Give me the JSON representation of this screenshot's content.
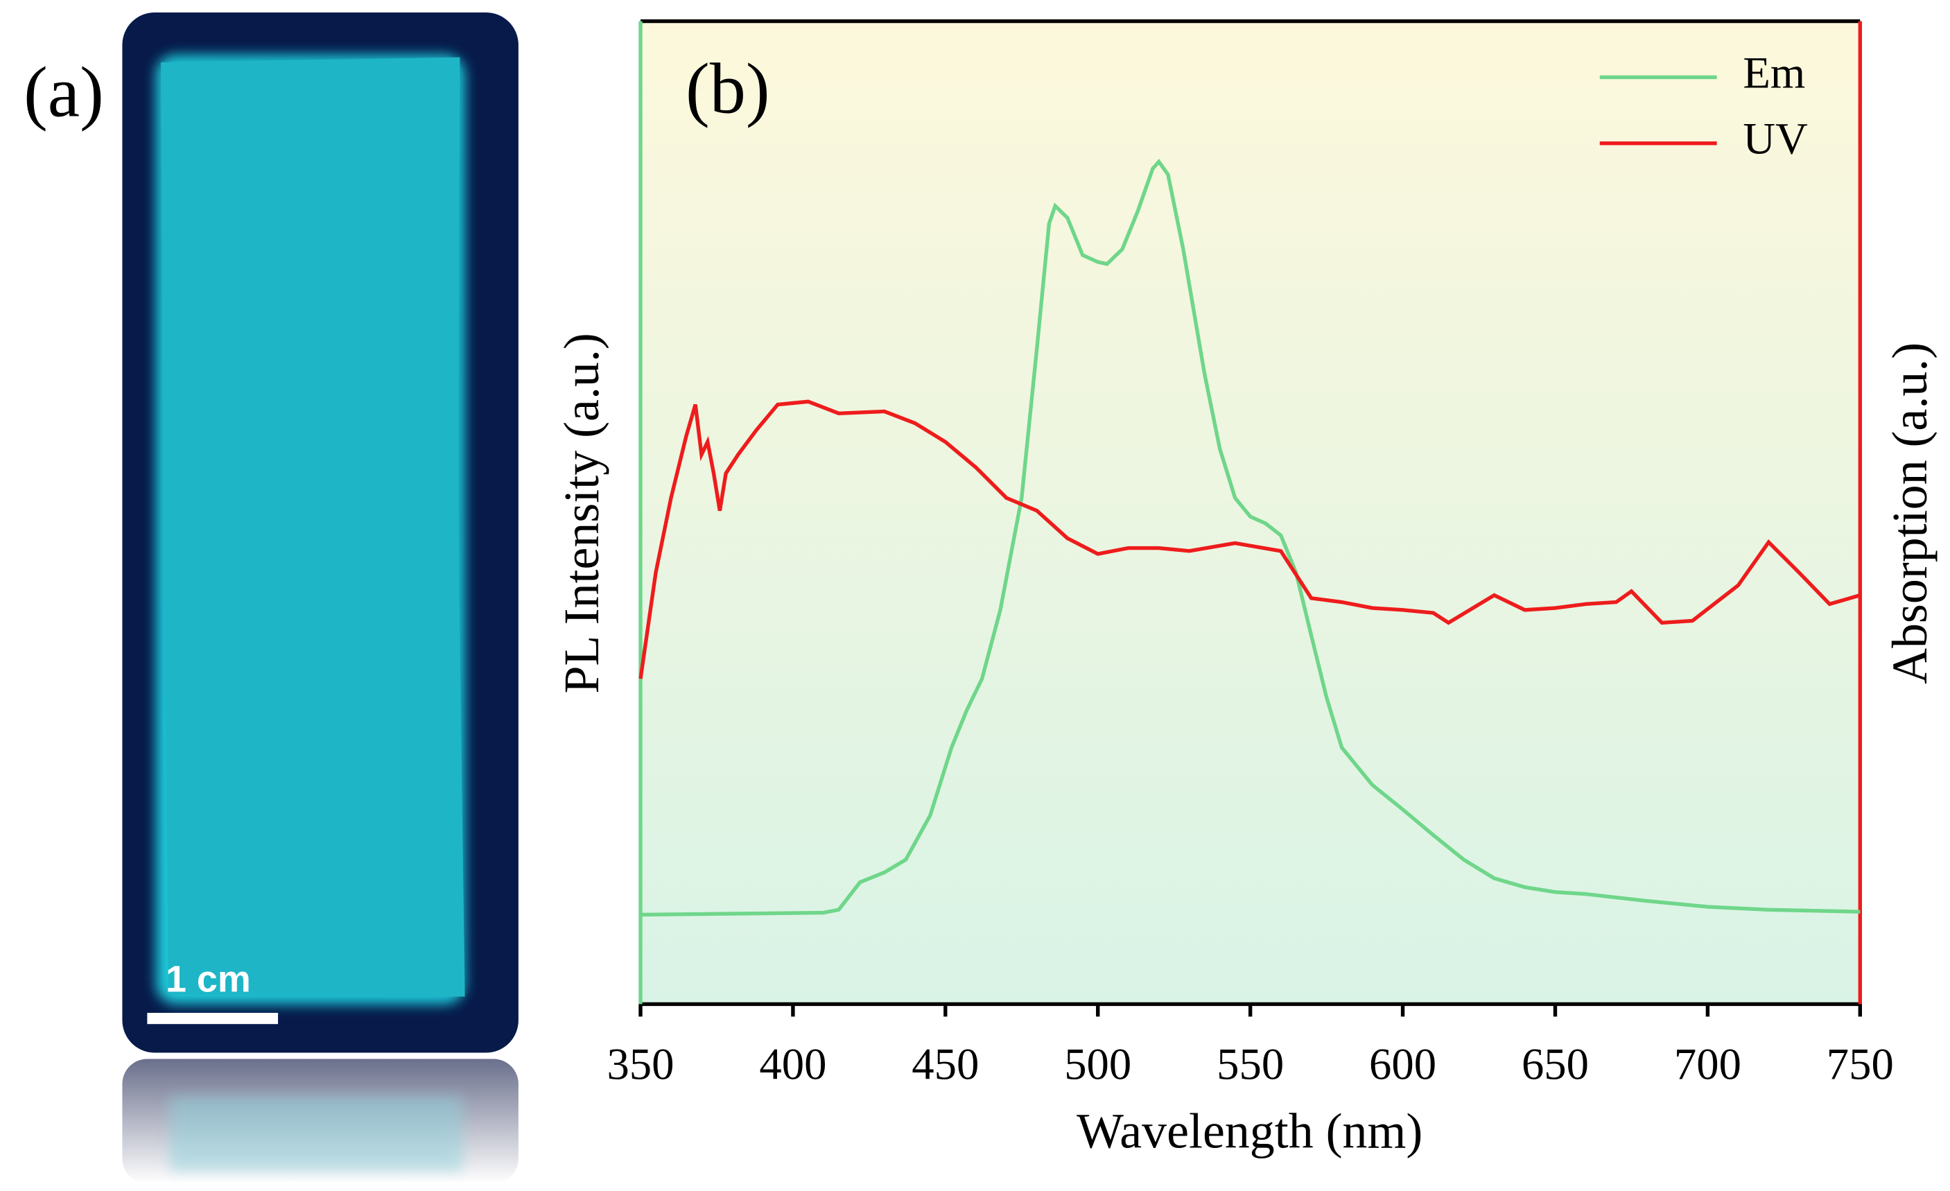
{
  "panel_a": {
    "label": "(a)",
    "scale_bar": "1 cm"
  },
  "chart_data": {
    "type": "line",
    "panel_label": "(b)",
    "xlabel": "Wavelength (nm)",
    "ylabel": "PL Intensity (a.u.)",
    "y2label": "Absorption (a.u.)",
    "xlim": [
      350,
      750
    ],
    "xticks": [
      350,
      400,
      450,
      500,
      550,
      600,
      650,
      700,
      750
    ],
    "ylim": [
      0,
      1
    ],
    "y2lim": [
      0,
      1
    ],
    "legend": "upper right",
    "series": [
      {
        "name": "Em",
        "color": "#6fd68a",
        "axis": "y",
        "x": [
          350,
          410,
          415,
          422,
          430,
          437,
          445,
          452,
          457,
          462,
          468,
          475,
          480,
          484,
          486,
          490,
          495,
          500,
          503,
          508,
          513,
          518,
          520,
          523,
          528,
          535,
          540,
          545,
          550,
          555,
          560,
          565,
          570,
          575,
          580,
          590,
          600,
          610,
          620,
          630,
          640,
          650,
          660,
          680,
          700,
          720,
          750
        ],
        "values": [
          0.091,
          0.093,
          0.096,
          0.124,
          0.134,
          0.147,
          0.192,
          0.261,
          0.299,
          0.331,
          0.401,
          0.515,
          0.667,
          0.794,
          0.812,
          0.8,
          0.762,
          0.755,
          0.753,
          0.768,
          0.806,
          0.85,
          0.857,
          0.844,
          0.768,
          0.641,
          0.565,
          0.515,
          0.496,
          0.489,
          0.477,
          0.439,
          0.375,
          0.312,
          0.261,
          0.223,
          0.198,
          0.172,
          0.147,
          0.128,
          0.119,
          0.114,
          0.112,
          0.105,
          0.099,
          0.096,
          0.094
        ]
      },
      {
        "name": "UV",
        "color": "#ee1c1c",
        "axis": "y2",
        "x": [
          350,
          355,
          360,
          365,
          368,
          370,
          372,
          374,
          376,
          378,
          382,
          388,
          395,
          405,
          415,
          430,
          440,
          450,
          460,
          470,
          480,
          490,
          500,
          510,
          520,
          530,
          545,
          560,
          570,
          580,
          590,
          600,
          610,
          615,
          630,
          640,
          650,
          660,
          670,
          675,
          685,
          695,
          710,
          720,
          730,
          740,
          750
        ],
        "values": [
          0.331,
          0.439,
          0.515,
          0.578,
          0.61,
          0.559,
          0.572,
          0.54,
          0.502,
          0.54,
          0.559,
          0.584,
          0.61,
          0.613,
          0.601,
          0.603,
          0.591,
          0.572,
          0.546,
          0.515,
          0.502,
          0.474,
          0.458,
          0.464,
          0.464,
          0.461,
          0.469,
          0.461,
          0.413,
          0.409,
          0.403,
          0.401,
          0.398,
          0.388,
          0.416,
          0.401,
          0.403,
          0.407,
          0.409,
          0.42,
          0.388,
          0.39,
          0.426,
          0.47,
          0.439,
          0.407,
          0.416
        ]
      }
    ]
  }
}
